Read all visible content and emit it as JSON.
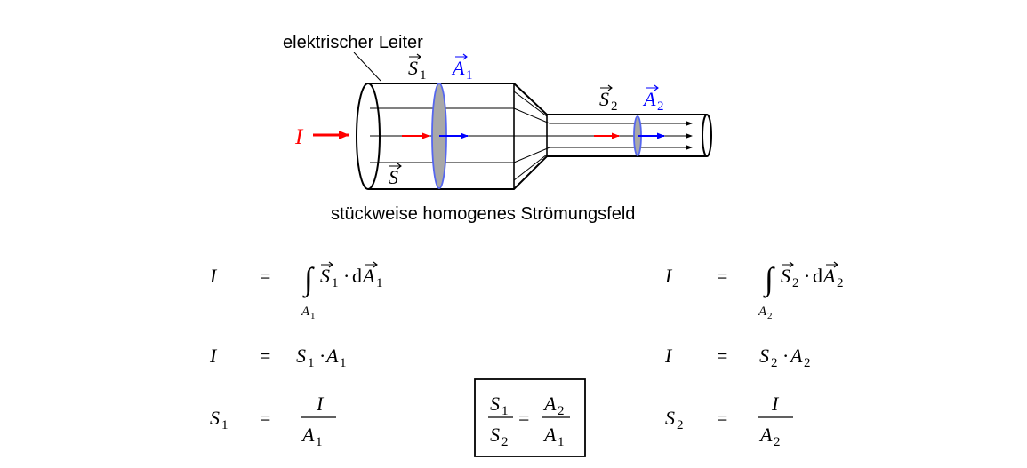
{
  "diagram": {
    "conductor_label": "elektrischer Leiter",
    "caption": "stückweise homogenes Strömungsfeld",
    "current_symbol": "I",
    "vec_S1": "S",
    "vec_S1_sub": "1",
    "vec_A1": "A",
    "vec_A1_sub": "1",
    "vec_S": "S",
    "vec_S2": "S",
    "vec_S2_sub": "2",
    "vec_A2": "A",
    "vec_A2_sub": "2",
    "colors": {
      "current": "#ff0000",
      "area": "#0000ff",
      "lines": "#000000",
      "disc_fill": "#a8a8a8"
    }
  },
  "equations": {
    "left": {
      "row1": {
        "lhs": "I",
        "eq": "=",
        "integral": "∫",
        "S": "S",
        "S_sub": "1",
        "dot": "·",
        "d": "d",
        "A": "A",
        "A_sub": "1",
        "limit": "A",
        "limit_sub": "1"
      },
      "row2": {
        "lhs": "I",
        "eq": "=",
        "S": "S",
        "S_sub": "1",
        "dot": "·",
        "A": "A",
        "A_sub": "1"
      },
      "row3": {
        "lhs": "S",
        "lhs_sub": "1",
        "eq": "=",
        "num": "I",
        "den": "A",
        "den_sub": "1"
      }
    },
    "right": {
      "row1": {
        "lhs": "I",
        "eq": "=",
        "integral": "∫",
        "S": "S",
        "S_sub": "2",
        "dot": "·",
        "d": "d",
        "A": "A",
        "A_sub": "2",
        "limit": "A",
        "limit_sub": "2"
      },
      "row2": {
        "lhs": "I",
        "eq": "=",
        "S": "S",
        "S_sub": "2",
        "dot": "·",
        "A": "A",
        "A_sub": "2"
      },
      "row3": {
        "lhs": "S",
        "lhs_sub": "2",
        "eq": "=",
        "num": "I",
        "den": "A",
        "den_sub": "2"
      }
    },
    "boxed": {
      "num_left": "S",
      "num_left_sub": "1",
      "den_left": "S",
      "den_left_sub": "2",
      "eq": "=",
      "num_right": "A",
      "num_right_sub": "2",
      "den_right": "A",
      "den_right_sub": "1"
    }
  }
}
